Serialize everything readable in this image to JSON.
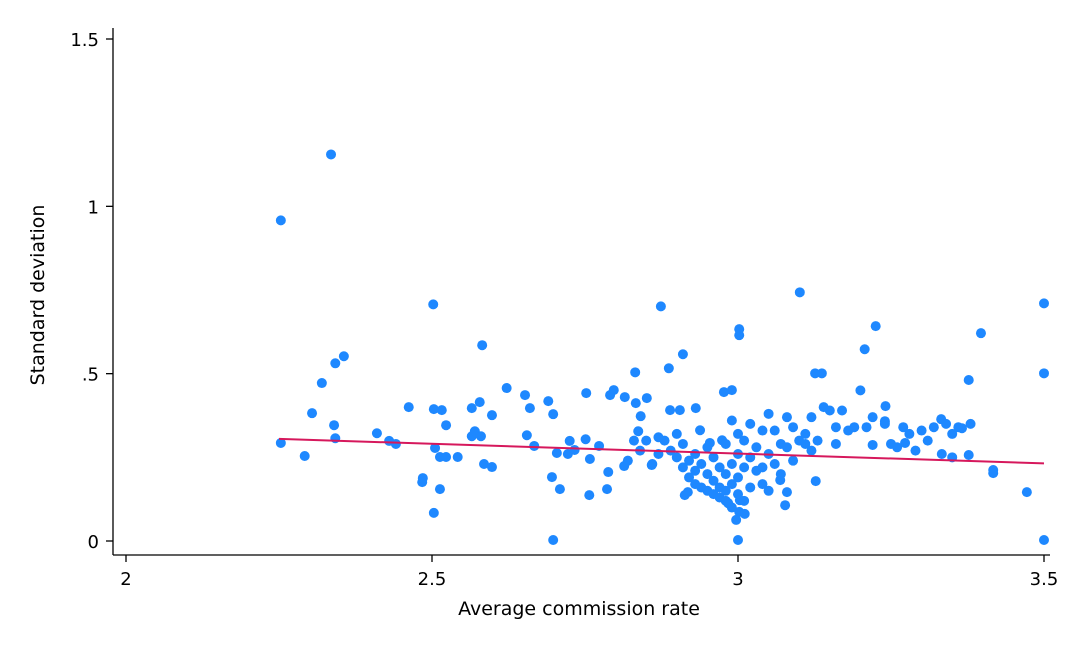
{
  "chart_data": {
    "type": "scatter",
    "title": "",
    "xlabel": "Average commission rate",
    "ylabel": "Standard deviation",
    "xlim": [
      2,
      3.5
    ],
    "ylim": [
      0,
      1.5
    ],
    "xticks": [
      {
        "v": 2,
        "label": "2"
      },
      {
        "v": 2.5,
        "label": "2.5"
      },
      {
        "v": 3,
        "label": "3"
      },
      {
        "v": 3.5,
        "label": "3.5"
      }
    ],
    "yticks": [
      {
        "v": 0,
        "label": "0"
      },
      {
        "v": 0.5,
        "label": ".5"
      },
      {
        "v": 1,
        "label": "1"
      },
      {
        "v": 1.5,
        "label": "1.5"
      }
    ],
    "grid": false,
    "colors": {
      "points": "#1e88ff",
      "fit_line": "#d6185c"
    },
    "fit_line": {
      "x": [
        2.25,
        3.5
      ],
      "y": [
        0.305,
        0.232
      ]
    },
    "points": [
      [
        2.253,
        0.958
      ],
      [
        2.335,
        1.155
      ],
      [
        2.253,
        0.293
      ],
      [
        2.292,
        0.254
      ],
      [
        2.304,
        0.382
      ],
      [
        2.32,
        0.472
      ],
      [
        2.342,
        0.531
      ],
      [
        2.356,
        0.552
      ],
      [
        2.34,
        0.346
      ],
      [
        2.342,
        0.307
      ],
      [
        2.41,
        0.322
      ],
      [
        2.43,
        0.299
      ],
      [
        2.441,
        0.29
      ],
      [
        2.462,
        0.4
      ],
      [
        2.484,
        0.176
      ],
      [
        2.485,
        0.188
      ],
      [
        2.502,
        0.707
      ],
      [
        2.503,
        0.394
      ],
      [
        2.505,
        0.278
      ],
      [
        2.503,
        0.084
      ],
      [
        2.516,
        0.391
      ],
      [
        2.513,
        0.251
      ],
      [
        2.523,
        0.346
      ],
      [
        2.523,
        0.251
      ],
      [
        2.513,
        0.155
      ],
      [
        2.542,
        0.251
      ],
      [
        2.565,
        0.397
      ],
      [
        2.565,
        0.313
      ],
      [
        2.57,
        0.328
      ],
      [
        2.578,
        0.415
      ],
      [
        2.582,
        0.585
      ],
      [
        2.58,
        0.313
      ],
      [
        2.585,
        0.23
      ],
      [
        2.598,
        0.376
      ],
      [
        2.598,
        0.221
      ],
      [
        2.622,
        0.457
      ],
      [
        2.652,
        0.436
      ],
      [
        2.655,
        0.316
      ],
      [
        2.66,
        0.397
      ],
      [
        2.667,
        0.284
      ],
      [
        2.69,
        0.418
      ],
      [
        2.698,
        0.379
      ],
      [
        2.698,
        0.003
      ],
      [
        2.696,
        0.191
      ],
      [
        2.709,
        0.155
      ],
      [
        2.704,
        0.263
      ],
      [
        2.722,
        0.26
      ],
      [
        2.725,
        0.299
      ],
      [
        2.733,
        0.272
      ],
      [
        2.751,
        0.304
      ],
      [
        2.752,
        0.442
      ],
      [
        2.757,
        0.137
      ],
      [
        2.758,
        0.245
      ],
      [
        2.773,
        0.284
      ],
      [
        2.786,
        0.155
      ],
      [
        2.788,
        0.206
      ],
      [
        2.791,
        0.436
      ],
      [
        2.797,
        0.451
      ],
      [
        2.814,
        0.224
      ],
      [
        2.815,
        0.43
      ],
      [
        2.832,
        0.504
      ],
      [
        2.833,
        0.412
      ],
      [
        2.841,
        0.373
      ],
      [
        2.837,
        0.328
      ],
      [
        2.851,
        0.427
      ],
      [
        2.874,
        0.701
      ],
      [
        2.859,
        0.227
      ],
      [
        2.887,
        0.516
      ],
      [
        2.91,
        0.558
      ],
      [
        2.889,
        0.391
      ],
      [
        2.905,
        0.391
      ],
      [
        2.931,
        0.397
      ],
      [
        2.938,
        0.331
      ],
      [
        2.954,
        0.293
      ],
      [
        2.974,
        0.301
      ],
      [
        2.977,
        0.445
      ],
      [
        2.99,
        0.451
      ],
      [
        3.002,
        0.633
      ],
      [
        3.002,
        0.615
      ],
      [
        2.913,
        0.137
      ],
      [
        2.918,
        0.146
      ],
      [
        3.0,
        0.003
      ],
      [
        2.997,
        0.063
      ],
      [
        3.002,
        0.087
      ],
      [
        2.984,
        0.113
      ],
      [
        3.003,
        0.122
      ],
      [
        3.011,
        0.081
      ],
      [
        3.069,
        0.182
      ],
      [
        3.08,
        0.146
      ],
      [
        3.077,
        0.107
      ],
      [
        3.101,
        0.743
      ],
      [
        3.126,
        0.501
      ],
      [
        3.137,
        0.501
      ],
      [
        3.127,
        0.179
      ],
      [
        3.207,
        0.573
      ],
      [
        3.225,
        0.642
      ],
      [
        3.241,
        0.403
      ],
      [
        3.24,
        0.358
      ],
      [
        3.22,
        0.287
      ],
      [
        3.273,
        0.293
      ],
      [
        3.333,
        0.26
      ],
      [
        3.332,
        0.364
      ],
      [
        3.366,
        0.337
      ],
      [
        3.397,
        0.621
      ],
      [
        3.377,
        0.481
      ],
      [
        3.377,
        0.257
      ],
      [
        3.417,
        0.212
      ],
      [
        3.417,
        0.203
      ],
      [
        3.472,
        0.146
      ],
      [
        3.5,
        0.71
      ],
      [
        3.5,
        0.501
      ],
      [
        3.5,
        0.003
      ],
      [
        2.88,
        0.3
      ],
      [
        2.89,
        0.27
      ],
      [
        2.9,
        0.25
      ],
      [
        2.9,
        0.32
      ],
      [
        2.91,
        0.22
      ],
      [
        2.91,
        0.29
      ],
      [
        2.92,
        0.24
      ],
      [
        2.92,
        0.19
      ],
      [
        2.93,
        0.21
      ],
      [
        2.93,
        0.26
      ],
      [
        2.93,
        0.17
      ],
      [
        2.94,
        0.16
      ],
      [
        2.94,
        0.23
      ],
      [
        2.95,
        0.15
      ],
      [
        2.95,
        0.2
      ],
      [
        2.95,
        0.28
      ],
      [
        2.96,
        0.14
      ],
      [
        2.96,
        0.18
      ],
      [
        2.96,
        0.25
      ],
      [
        2.97,
        0.13
      ],
      [
        2.97,
        0.16
      ],
      [
        2.97,
        0.22
      ],
      [
        2.98,
        0.12
      ],
      [
        2.98,
        0.15
      ],
      [
        2.98,
        0.2
      ],
      [
        2.98,
        0.29
      ],
      [
        2.99,
        0.1
      ],
      [
        2.99,
        0.17
      ],
      [
        2.99,
        0.23
      ],
      [
        2.99,
        0.36
      ],
      [
        3.0,
        0.14
      ],
      [
        3.0,
        0.19
      ],
      [
        3.0,
        0.26
      ],
      [
        3.0,
        0.32
      ],
      [
        3.01,
        0.12
      ],
      [
        3.01,
        0.22
      ],
      [
        3.01,
        0.3
      ],
      [
        3.02,
        0.16
      ],
      [
        3.02,
        0.25
      ],
      [
        3.02,
        0.35
      ],
      [
        3.03,
        0.21
      ],
      [
        3.03,
        0.28
      ],
      [
        3.04,
        0.33
      ],
      [
        3.04,
        0.17
      ],
      [
        3.05,
        0.26
      ],
      [
        3.05,
        0.38
      ],
      [
        2.86,
        0.23
      ],
      [
        2.87,
        0.26
      ],
      [
        2.87,
        0.31
      ],
      [
        2.85,
        0.3
      ],
      [
        2.84,
        0.27
      ],
      [
        2.83,
        0.3
      ],
      [
        2.82,
        0.24
      ],
      [
        3.06,
        0.33
      ],
      [
        3.07,
        0.29
      ],
      [
        3.08,
        0.37
      ],
      [
        3.09,
        0.34
      ],
      [
        3.1,
        0.3
      ],
      [
        3.11,
        0.32
      ],
      [
        3.12,
        0.27
      ],
      [
        3.12,
        0.37
      ],
      [
        3.13,
        0.3
      ],
      [
        3.14,
        0.4
      ],
      [
        3.15,
        0.39
      ],
      [
        3.16,
        0.34
      ],
      [
        3.16,
        0.29
      ],
      [
        3.17,
        0.39
      ],
      [
        3.18,
        0.33
      ],
      [
        3.19,
        0.34
      ],
      [
        3.2,
        0.45
      ],
      [
        3.21,
        0.34
      ],
      [
        3.22,
        0.37
      ],
      [
        3.24,
        0.35
      ],
      [
        3.25,
        0.29
      ],
      [
        3.26,
        0.28
      ],
      [
        3.27,
        0.34
      ],
      [
        3.28,
        0.32
      ],
      [
        3.29,
        0.27
      ],
      [
        3.3,
        0.33
      ],
      [
        3.31,
        0.3
      ],
      [
        3.32,
        0.34
      ],
      [
        3.34,
        0.35
      ],
      [
        3.35,
        0.32
      ],
      [
        3.35,
        0.25
      ],
      [
        3.36,
        0.34
      ],
      [
        3.38,
        0.35
      ],
      [
        3.05,
        0.15
      ],
      [
        3.04,
        0.22
      ],
      [
        3.06,
        0.23
      ],
      [
        3.07,
        0.2
      ],
      [
        3.08,
        0.28
      ],
      [
        3.09,
        0.24
      ],
      [
        3.11,
        0.29
      ]
    ]
  }
}
